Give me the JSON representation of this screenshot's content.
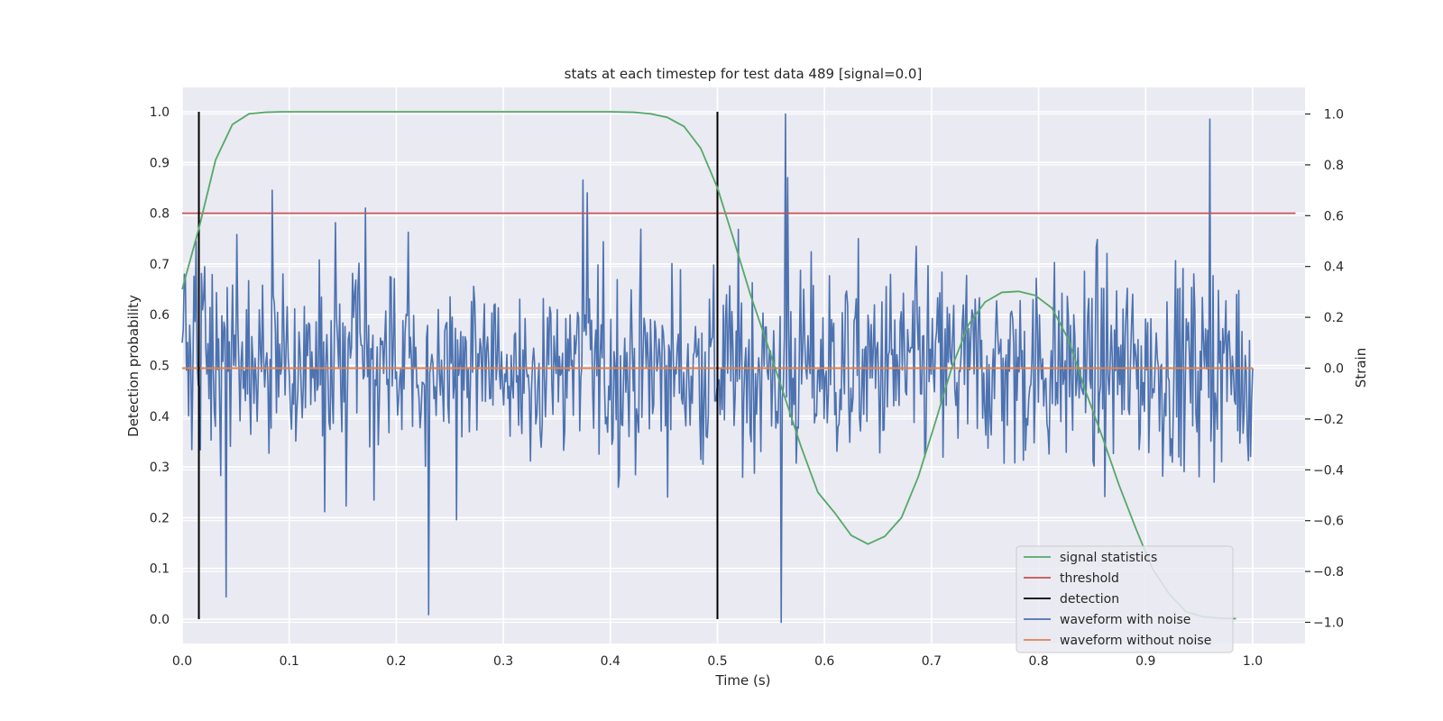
{
  "chart_data": {
    "type": "line",
    "title": "stats at each timestep for test data 489 [signal=0.0]",
    "xlabel": "Time (s)",
    "ylabel": "Detection probability",
    "y2label": "Strain",
    "xlim": [
      0.0,
      1.05
    ],
    "ylim": [
      -0.05,
      1.05
    ],
    "y2lim": [
      -1.1,
      1.1
    ],
    "xticks": [
      0.0,
      0.1,
      0.2,
      0.3,
      0.4,
      0.5,
      0.6,
      0.7,
      0.8,
      0.9,
      1.0
    ],
    "xtick_labels": [
      "0.0",
      "0.1",
      "0.2",
      "0.3",
      "0.4",
      "0.5",
      "0.6",
      "0.7",
      "0.8",
      "0.9",
      "1.0"
    ],
    "yticks": [
      0.0,
      0.1,
      0.2,
      0.3,
      0.4,
      0.5,
      0.6,
      0.7,
      0.8,
      0.9,
      1.0
    ],
    "ytick_labels": [
      "0.0",
      "0.1",
      "0.2",
      "0.3",
      "0.4",
      "0.5",
      "0.6",
      "0.7",
      "0.8",
      "0.9",
      "1.0"
    ],
    "y2ticks": [
      -1.0,
      -0.8,
      -0.6,
      -0.4,
      -0.2,
      0.0,
      0.2,
      0.4,
      0.6,
      0.8,
      1.0
    ],
    "y2tick_labels": [
      "−1.0",
      "−0.8",
      "−0.6",
      "−0.4",
      "−0.2",
      "0.0",
      "0.2",
      "0.4",
      "0.6",
      "0.8",
      "1.0"
    ],
    "grid": true,
    "legend_position": "lower-right",
    "legend": [
      {
        "label": "signal statistics",
        "color": "#55a868"
      },
      {
        "label": "threshold",
        "color": "#c44e52"
      },
      {
        "label": "detection",
        "color": "#000000"
      },
      {
        "label": "waveform with noise",
        "color": "#4c72b0"
      },
      {
        "label": "waveform without noise",
        "color": "#dd8452"
      }
    ],
    "series": [
      {
        "name": "signal statistics",
        "axis": "left",
        "color": "#55a868",
        "x": [
          0.0,
          0.0156,
          0.0312,
          0.0469,
          0.0625,
          0.0781,
          0.0938,
          0.1094,
          0.125,
          0.2,
          0.3,
          0.4,
          0.4219,
          0.4375,
          0.4531,
          0.4688,
          0.4844,
          0.5,
          0.5156,
          0.5312,
          0.5469,
          0.5625,
          0.5781,
          0.5938,
          0.6094,
          0.625,
          0.6406,
          0.6562,
          0.6719,
          0.6875,
          0.7031,
          0.7188,
          0.7344,
          0.75,
          0.7656,
          0.7812,
          0.7969,
          0.8125,
          0.8281,
          0.8438,
          0.8594,
          0.875,
          0.8906,
          0.9062,
          0.9219,
          0.9375,
          0.9531,
          0.9688,
          0.9844
        ],
        "y": [
          0.65,
          0.77,
          0.905,
          0.975,
          0.996,
          0.999,
          1.0,
          1.0,
          1.0,
          1.0,
          1.0,
          1.0,
          0.999,
          0.996,
          0.989,
          0.971,
          0.928,
          0.85,
          0.745,
          0.637,
          0.54,
          0.44,
          0.34,
          0.25,
          0.21,
          0.165,
          0.148,
          0.163,
          0.2,
          0.28,
          0.385,
          0.495,
          0.58,
          0.625,
          0.644,
          0.646,
          0.638,
          0.613,
          0.55,
          0.45,
          0.36,
          0.265,
          0.18,
          0.1,
          0.05,
          0.015,
          0.005,
          0.002,
          0.001
        ]
      },
      {
        "name": "threshold",
        "axis": "left",
        "color": "#c44e52",
        "x": [
          0.0,
          1.04
        ],
        "y": [
          0.8,
          0.8
        ]
      },
      {
        "name": "detection",
        "axis": "left",
        "color": "#000000",
        "x": [
          0.0156,
          0.5
        ],
        "y_range": [
          0.0,
          1.0
        ]
      },
      {
        "name": "waveform with noise",
        "axis": "right",
        "color": "#4c72b0",
        "points": 1000,
        "x_range": [
          0.0,
          1.0
        ],
        "y_range_approx": [
          -1.0,
          1.0
        ],
        "notable_points": [
          {
            "x": 0.0,
            "y": 0.1
          },
          {
            "x": 0.003,
            "y": 0.35
          },
          {
            "x": 0.013,
            "y": 0.5
          },
          {
            "x": 0.041,
            "y": -0.9
          },
          {
            "x": 0.084,
            "y": 0.7
          },
          {
            "x": 0.171,
            "y": 0.63
          },
          {
            "x": 0.23,
            "y": -0.97
          },
          {
            "x": 0.374,
            "y": 0.74
          },
          {
            "x": 0.378,
            "y": 0.69
          },
          {
            "x": 0.56,
            "y": -1.0
          },
          {
            "x": 0.564,
            "y": 1.0
          },
          {
            "x": 0.566,
            "y": 0.75
          },
          {
            "x": 0.96,
            "y": 0.98
          },
          {
            "x": 1.0,
            "y": 0.0
          }
        ]
      },
      {
        "name": "waveform without noise",
        "axis": "right",
        "color": "#dd8452",
        "x": [
          0.0,
          1.0
        ],
        "y": [
          0.0,
          0.0
        ]
      }
    ]
  }
}
